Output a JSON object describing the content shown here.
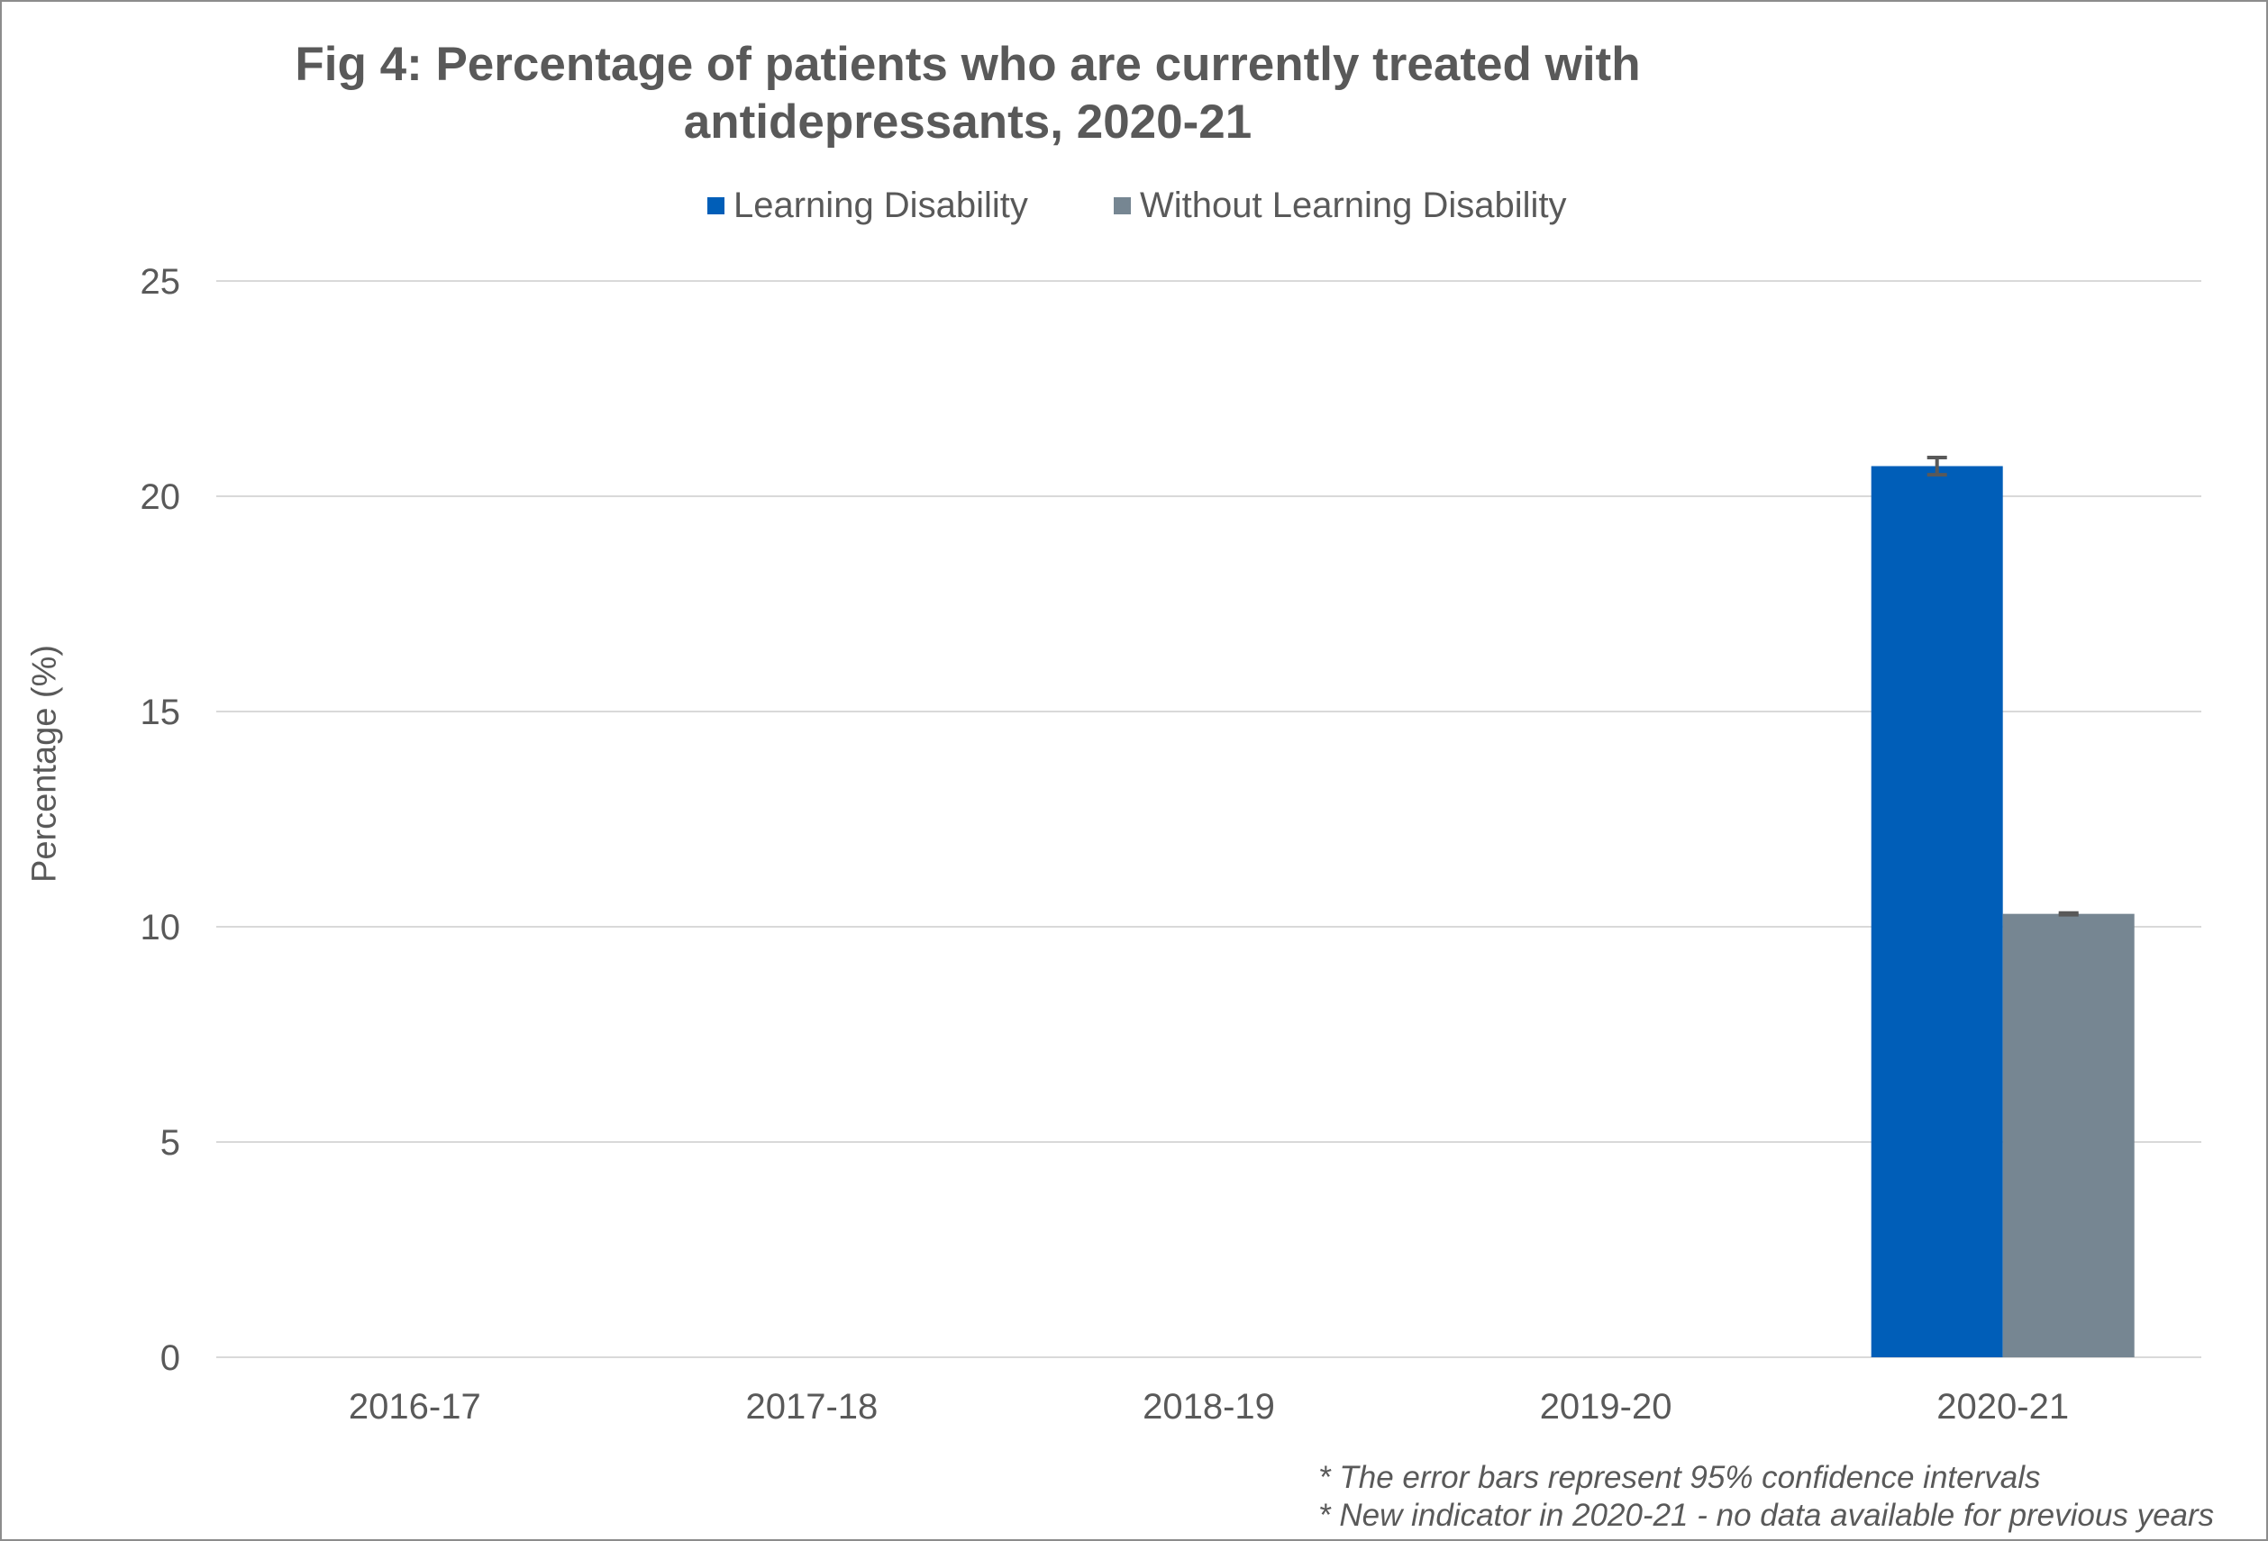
{
  "chart_data": {
    "type": "bar",
    "title": "Fig 4: Percentage of patients who are currently treated with antidepressants, 2020-21",
    "title_lines": [
      "Fig 4: Percentage of patients who are currently treated with",
      "antidepressants, 2020-21"
    ],
    "xlabel": "",
    "ylabel": "Percentage (%)",
    "ylim": [
      0,
      25
    ],
    "yticks": [
      0,
      5,
      10,
      15,
      20,
      25
    ],
    "grid": true,
    "legend_position": "top",
    "categories": [
      "2016-17",
      "2017-18",
      "2018-19",
      "2019-20",
      "2020-21"
    ],
    "series": [
      {
        "name": "Learning Disability",
        "color": "#005EB8",
        "values": [
          null,
          null,
          null,
          null,
          20.7
        ],
        "ci_low": [
          null,
          null,
          null,
          null,
          20.5
        ],
        "ci_high": [
          null,
          null,
          null,
          null,
          20.9
        ]
      },
      {
        "name": "Without Learning Disability",
        "color": "#768692",
        "values": [
          null,
          null,
          null,
          null,
          10.3
        ],
        "ci_low": [
          null,
          null,
          null,
          null,
          10.28
        ],
        "ci_high": [
          null,
          null,
          null,
          null,
          10.32
        ]
      }
    ],
    "footnotes": [
      "* The error bars represent 95% confidence intervals",
      "* New indicator in 2020-21 - no data available for previous years"
    ]
  },
  "colors": {
    "text": "#595959",
    "gridline": "#d9d9d9",
    "error_bar": "#595959",
    "border": "#8c8c8c"
  }
}
